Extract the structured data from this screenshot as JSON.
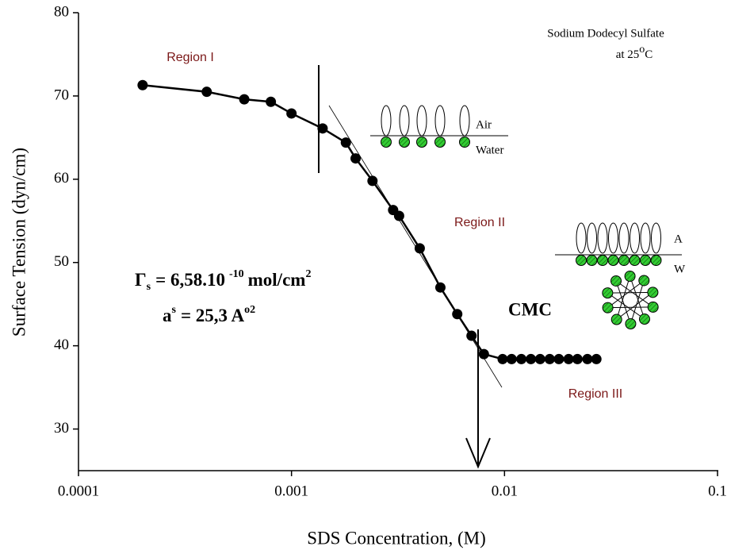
{
  "chart_data": {
    "type": "line",
    "x_label": "SDS Concentration, (M)",
    "y_label": "Surface Tension (dyn/cm)",
    "xscale": "log",
    "xlim": [
      0.0001,
      0.1
    ],
    "xticks": [
      0.0001,
      0.001,
      0.01,
      0.1
    ],
    "ylim": [
      25,
      80
    ],
    "yticks": [
      30,
      40,
      50,
      60,
      70,
      80
    ],
    "grid": false,
    "series": [
      {
        "color": "#000000",
        "x": [
          0.0002,
          0.0004,
          0.0006,
          0.0008,
          0.001,
          0.0014,
          0.0018,
          0.002,
          0.0024,
          0.003,
          0.0032,
          0.004,
          0.005,
          0.006,
          0.007,
          0.008,
          0.0098,
          0.0108,
          0.012,
          0.0133,
          0.0147,
          0.0163,
          0.018,
          0.02,
          0.022,
          0.0245,
          0.027
        ],
        "values": [
          71.3,
          70.5,
          69.6,
          69.3,
          67.9,
          66.1,
          64.4,
          62.5,
          59.8,
          56.3,
          55.6,
          51.7,
          47.0,
          43.8,
          41.2,
          39.0,
          38.4,
          38.4,
          38.4,
          38.4,
          38.4,
          38.4,
          38.4,
          38.4,
          38.4,
          38.4,
          38.4
        ]
      }
    ],
    "annotations": {
      "region_1": "Region I",
      "region_2": "Region II",
      "region_3": "Region III",
      "surfactant": "Sodium Dodecyl Sulfate",
      "temperature": {
        "text": "at 25",
        "sup": "o",
        "unit": "C"
      },
      "air": "Air",
      "water": "Water",
      "air_short": "A",
      "water_short": "W",
      "cmc": "CMC",
      "gamma": {
        "symbol": "Γ",
        "sub": "s",
        "text": "= 6,58.10",
        "exp": "-10",
        "unit": "mol/cm",
        "unit_exp": "2"
      },
      "area": {
        "symbol": "a",
        "sup": "s",
        "text": "= 25,3 A",
        "unit_exp": "o2"
      }
    }
  }
}
